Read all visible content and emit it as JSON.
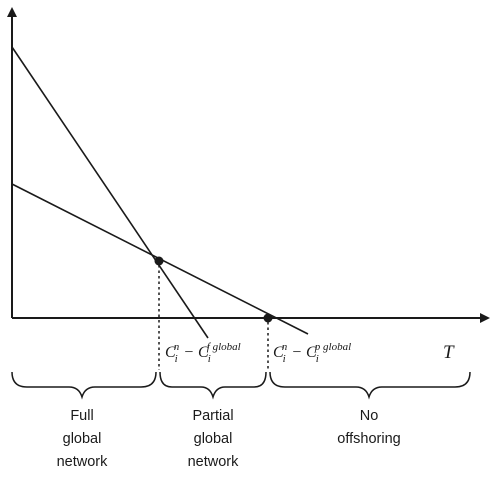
{
  "axis": {
    "x_label": "T"
  },
  "lines": [
    {
      "name": "steep",
      "base": "C",
      "sub": "i",
      "sup_left": "n",
      "sup_right": "f global"
    },
    {
      "name": "shallow",
      "base": "C",
      "sub": "i",
      "sup_left": "n",
      "sup_right": "p global"
    }
  ],
  "regions": [
    {
      "lines": [
        "Full",
        "global",
        "network"
      ]
    },
    {
      "lines": [
        "Partial",
        "global",
        "network"
      ]
    },
    {
      "lines": [
        "No",
        "offshoring"
      ]
    }
  ],
  "colors": {
    "ink": "#1a1a1a",
    "background": "#ffffff"
  }
}
